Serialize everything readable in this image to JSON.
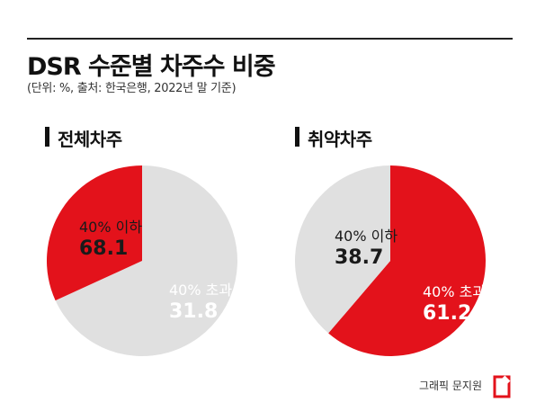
{
  "header": {
    "title": "DSR 수준별 차주수 비중",
    "subtitle": "(단위: %, 출처: 한국은행, 2022년 말 기준)"
  },
  "footer": {
    "credit": "그래픽 문지원"
  },
  "colors": {
    "red": "#e3121b",
    "grey": "#e0e0e0",
    "white": "#ffffff",
    "dark": "#1a1a1a"
  },
  "chart_data": [
    {
      "type": "pie",
      "title": "전체차주",
      "slices": [
        {
          "label": "40% 초과",
          "value": 31.8,
          "value_text": "31.8",
          "color": "#e3121b"
        },
        {
          "label": "40% 이하",
          "value": 68.1,
          "value_text": "68.1",
          "color": "#e0e0e0"
        }
      ]
    },
    {
      "type": "pie",
      "title": "취약차주",
      "slices": [
        {
          "label": "40% 초과",
          "value": 61.2,
          "value_text": "61.2",
          "color": "#e3121b"
        },
        {
          "label": "40% 이하",
          "value": 38.7,
          "value_text": "38.7",
          "color": "#e0e0e0"
        }
      ]
    }
  ]
}
